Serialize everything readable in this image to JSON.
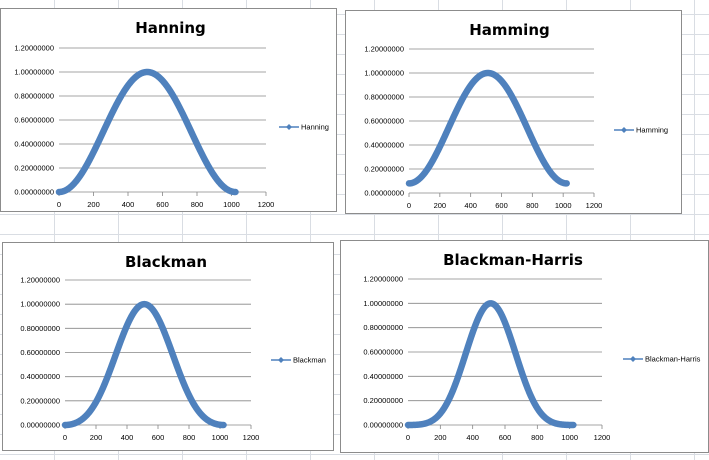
{
  "colors": {
    "series": "#4f81bd",
    "gridline": "#868686",
    "axis": "#868686"
  },
  "chart_data": [
    {
      "type": "scatter",
      "title": "Hanning",
      "window": "hanning",
      "x_ticks": [
        "0",
        "200",
        "400",
        "600",
        "800",
        "1000",
        "1200"
      ],
      "y_ticks": [
        "0.00000000",
        "0.20000000",
        "0.40000000",
        "0.60000000",
        "0.80000000",
        "1.00000000",
        "1.20000000"
      ],
      "xlim": [
        0,
        1200
      ],
      "ylim": [
        0,
        1.2
      ],
      "grid": true,
      "legend_position": "right",
      "series": [
        {
          "name": "Hanning",
          "x_range": [
            0,
            1023
          ],
          "y_min": 0,
          "y_max": 1,
          "peak_x": 512
        }
      ]
    },
    {
      "type": "scatter",
      "title": "Hamming",
      "window": "hamming",
      "x_ticks": [
        "0",
        "200",
        "400",
        "600",
        "800",
        "1000",
        "1200"
      ],
      "y_ticks": [
        "0.00000000",
        "0.20000000",
        "0.40000000",
        "0.60000000",
        "0.80000000",
        "1.00000000",
        "1.20000000"
      ],
      "xlim": [
        0,
        1200
      ],
      "ylim": [
        0,
        1.2
      ],
      "grid": true,
      "legend_position": "right",
      "series": [
        {
          "name": "Hamming",
          "x_range": [
            0,
            1023
          ],
          "y_min": 0.08,
          "y_max": 1,
          "peak_x": 512
        }
      ]
    },
    {
      "type": "scatter",
      "title": "Blackman",
      "window": "blackman",
      "x_ticks": [
        "0",
        "200",
        "400",
        "600",
        "800",
        "1000",
        "1200"
      ],
      "y_ticks": [
        "0.00000000",
        "0.20000000",
        "0.40000000",
        "0.60000000",
        "0.80000000",
        "1.00000000",
        "1.20000000"
      ],
      "xlim": [
        0,
        1200
      ],
      "ylim": [
        0,
        1.2
      ],
      "grid": true,
      "legend_position": "right",
      "series": [
        {
          "name": "Blackman",
          "x_range": [
            0,
            1023
          ],
          "y_min": 0,
          "y_max": 1,
          "peak_x": 512
        }
      ]
    },
    {
      "type": "scatter",
      "title": "Blackman-Harris",
      "window": "blackman-harris",
      "x_ticks": [
        "0",
        "200",
        "400",
        "600",
        "800",
        "1000",
        "1200"
      ],
      "y_ticks": [
        "0.00000000",
        "0.20000000",
        "0.40000000",
        "0.60000000",
        "0.80000000",
        "1.00000000",
        "1.20000000"
      ],
      "xlim": [
        0,
        1200
      ],
      "ylim": [
        0,
        1.2
      ],
      "grid": true,
      "legend_position": "right",
      "series": [
        {
          "name": "Blackman-Harris",
          "x_range": [
            0,
            1023
          ],
          "y_min": 0,
          "y_max": 1,
          "peak_x": 512
        }
      ]
    }
  ]
}
